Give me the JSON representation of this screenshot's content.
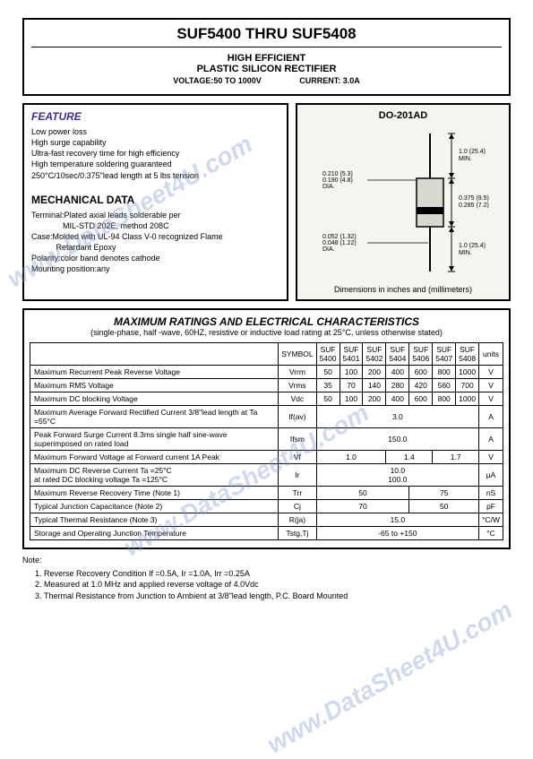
{
  "watermark": "www.DataSheet4U.com",
  "header": {
    "title": "SUF5400  THRU  SUF5408",
    "sub1": "HIGH  EFFICIENT",
    "sub2": "PLASTIC  SILICON  RECTIFIER",
    "voltage_label": "VOLTAGE:50  TO  1000V",
    "current_label": "CURRENT:  3.0A"
  },
  "feature": {
    "heading": "FEATURE",
    "lines": [
      "Low power loss",
      "High surge capability",
      "Ultra-fast recovery time for high efficiency",
      "High temperature soldering guaranteed",
      "250°C/10sec/0.375\"lead length at 5 lbs tension"
    ]
  },
  "mech": {
    "heading": "MECHANICAL DATA",
    "lines": [
      "Terminal:Plated axial leads solderable per",
      "              MIL-STD 202E, method 208C",
      "Case:Molded with UL-94 Class V-0 recognized Flame",
      "           Retardant Epoxy",
      "Polarity:color band denotes cathode",
      "Mounting position:any"
    ]
  },
  "package": {
    "label": "DO-201AD",
    "dim_top": "1.0 (25.4) MIN.",
    "dim_lead": "0.210 (5.3)\n0.190 (4.8)\nDIA.",
    "dim_body": "0.375 (9.5)\n0.285 (7.2)",
    "dim_wire": "0.052 (1.32)\n0.048 (1.22)\nDIA.",
    "dim_bot": "1.0 (25.4) MIN.",
    "note": "Dimensions in inches and (millimeters)"
  },
  "ratings": {
    "heading": "MAXIMUM  RATINGS  AND  ELECTRICAL  CHARACTERISTICS",
    "sub": "(single-phase, half -wave, 60HZ, resistive or inductive load rating at 25°C, unless otherwise stated)",
    "cols": [
      "SYMBOL",
      "SUF 5400",
      "SUF 5401",
      "SUF 5402",
      "SUF 5404",
      "SUF 5406",
      "SUF 5407",
      "SUF 5408",
      "units"
    ],
    "rows": [
      {
        "param": "Maximum Recurrent Peak Reverse Voltage",
        "sym": "Vrrm",
        "cells": [
          "50",
          "100",
          "200",
          "400",
          "600",
          "800",
          "1000"
        ],
        "unit": "V"
      },
      {
        "param": "Maximum RMS Voltage",
        "sym": "Vrms",
        "cells": [
          "35",
          "70",
          "140",
          "280",
          "420",
          "560",
          "700"
        ],
        "unit": "V"
      },
      {
        "param": "Maximum DC blocking Voltage",
        "sym": "Vdc",
        "cells": [
          "50",
          "100",
          "200",
          "400",
          "600",
          "800",
          "1000"
        ],
        "unit": "V"
      },
      {
        "param": "Maximum Average Forward Rectified Current 3/8\"lead length at Ta =55°C",
        "sym": "If(av)",
        "span": "3.0",
        "unit": "A"
      },
      {
        "param": "Peak Forward Surge Current 8.3ms single half sine-wave superimposed on rated load",
        "sym": "Ifsm",
        "span": "150.0",
        "unit": "A"
      },
      {
        "param": "Maximum Forward Voltage at Forward current 1A Peak",
        "sym": "Vf",
        "groups": [
          {
            "span": 3,
            "val": "1.0"
          },
          {
            "span": 2,
            "val": "1.4"
          },
          {
            "span": 2,
            "val": "1.7"
          }
        ],
        "unit": "V"
      },
      {
        "param": "Maximum DC Reverse Current     Ta =25°C\nat rated DC blocking voltage       Ta =125°C",
        "sym": "Ir",
        "stack": [
          "10.0",
          "100.0"
        ],
        "unit": "µA"
      },
      {
        "param": "Maximum Reverse Recovery Time      (Note 1)",
        "sym": "Trr",
        "groups": [
          {
            "span": 4,
            "val": "50"
          },
          {
            "span": 3,
            "val": "75"
          }
        ],
        "unit": "nS"
      },
      {
        "param": "Typical Junction Capacitance           (Note 2)",
        "sym": "Cj",
        "groups": [
          {
            "span": 4,
            "val": "70"
          },
          {
            "span": 3,
            "val": "50"
          }
        ],
        "unit": "pF"
      },
      {
        "param": "Typical Thermal Resistance               (Note 3)",
        "sym": "R(ja)",
        "span": "15.0",
        "unit": "°C/W"
      },
      {
        "param": "Storage and Operating Junction Temperature",
        "sym": "Tstg,Tj",
        "span": "-65 to +150",
        "unit": "°C"
      }
    ]
  },
  "notes": {
    "title": "Note:",
    "items": [
      "Reverse Recovery Condition If =0.5A, Ir =1.0A, Irr =0.25A",
      "Measured at 1.0 MHz and applied reverse voltage of 4.0Vdc",
      "Thermal Resistance from Junction to Ambient at 3/8\"lead length, P.C. Board Mounted"
    ]
  }
}
